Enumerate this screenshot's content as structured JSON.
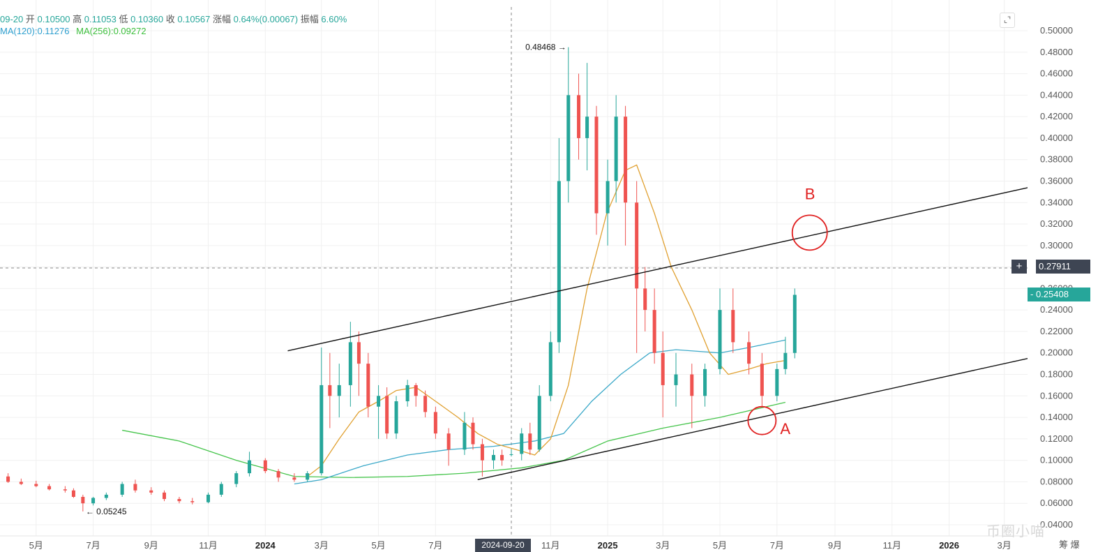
{
  "ohlc": {
    "date": "09-20",
    "open_label": "开",
    "open": "0.10500",
    "high_label": "高",
    "high": "0.11053",
    "low_label": "低",
    "low": "0.10360",
    "close_label": "收",
    "close": "0.10567",
    "change_label": "涨幅",
    "change": "0.64%(0.00067)",
    "amp_label": "振幅",
    "amp": "6.60%"
  },
  "ma": {
    "ma120": "MA(120):0.11276",
    "ma256": "MA(256):0.09272"
  },
  "crosshair": {
    "price": "0.27911",
    "date": "2024-09-20"
  },
  "last_price": "0.25408",
  "watermark": "币圈小喵",
  "corner_text": "筹 爆",
  "colors": {
    "up": "#26a69a",
    "down": "#ef5350",
    "ma_short": "#e0a030",
    "ma120": "#3aa8c8",
    "ma256": "#44c44a",
    "trendline": "#111111",
    "circle": "#e02020"
  },
  "chart_data": {
    "type": "candlestick",
    "title": "",
    "xlabel": "",
    "ylabel": "",
    "ylim": [
      0.04,
      0.5
    ],
    "y_ticks": [
      "0.50000",
      "0.48000",
      "0.46000",
      "0.44000",
      "0.42000",
      "0.40000",
      "0.38000",
      "0.36000",
      "0.34000",
      "0.32000",
      "0.30000",
      "0.28000",
      "0.26000",
      "0.24000",
      "0.22000",
      "0.20000",
      "0.18000",
      "0.16000",
      "0.14000",
      "0.12000",
      "0.10000",
      "0.08000",
      "0.06000",
      "0.04000"
    ],
    "x_ticks": [
      "5月",
      "7月",
      "9月",
      "11月",
      "2024",
      "3月",
      "5月",
      "7月",
      "11月",
      "2025",
      "3月",
      "5月",
      "7月",
      "9月",
      "11月",
      "2026",
      "3月"
    ],
    "annotations": [
      {
        "text": "0.48468 →",
        "value": 0.48468
      },
      {
        "text": "← 0.05245",
        "value": 0.05245
      },
      {
        "text": "A",
        "value": 0.144
      },
      {
        "text": "B",
        "value": 0.31
      }
    ],
    "ma_short": [
      [
        "2024-02-15",
        0.085
      ],
      [
        "2024-03-01",
        0.095
      ],
      [
        "2024-03-20",
        0.12
      ],
      [
        "2024-04-10",
        0.145
      ],
      [
        "2024-05-01",
        0.155
      ],
      [
        "2024-05-20",
        0.165
      ],
      [
        "2024-06-10",
        0.168
      ],
      [
        "2024-07-01",
        0.155
      ],
      [
        "2024-07-25",
        0.14
      ],
      [
        "2024-08-15",
        0.125
      ],
      [
        "2024-09-05",
        0.115
      ],
      [
        "2024-09-25",
        0.11
      ],
      [
        "2024-10-15",
        0.105
      ],
      [
        "2024-11-01",
        0.12
      ],
      [
        "2024-11-20",
        0.17
      ],
      [
        "2024-12-10",
        0.26
      ],
      [
        "2024-12-31",
        0.33
      ],
      [
        "2025-01-20",
        0.37
      ],
      [
        "2025-02-01",
        0.375
      ],
      [
        "2025-02-20",
        0.33
      ],
      [
        "2025-03-10",
        0.28
      ],
      [
        "2025-04-01",
        0.24
      ],
      [
        "2025-04-20",
        0.2
      ],
      [
        "2025-05-10",
        0.18
      ],
      [
        "2025-06-01",
        0.185
      ],
      [
        "2025-06-20",
        0.19
      ],
      [
        "2025-07-10",
        0.193
      ]
    ],
    "ma120": [
      [
        "2024-02-01",
        0.078
      ],
      [
        "2024-03-01",
        0.082
      ],
      [
        "2024-04-15",
        0.095
      ],
      [
        "2024-06-01",
        0.105
      ],
      [
        "2024-07-15",
        0.11
      ],
      [
        "2024-09-01",
        0.113
      ],
      [
        "2024-10-15",
        0.118
      ],
      [
        "2024-11-15",
        0.125
      ],
      [
        "2024-12-15",
        0.155
      ],
      [
        "2025-01-15",
        0.18
      ],
      [
        "2025-02-15",
        0.2
      ],
      [
        "2025-03-15",
        0.203
      ],
      [
        "2025-05-01",
        0.2
      ],
      [
        "2025-06-01",
        0.205
      ],
      [
        "2025-07-10",
        0.212
      ]
    ],
    "ma256": [
      [
        "2023-08-01",
        0.128
      ],
      [
        "2023-10-01",
        0.118
      ],
      [
        "2023-12-01",
        0.1
      ],
      [
        "2024-02-01",
        0.085
      ],
      [
        "2024-04-01",
        0.084
      ],
      [
        "2024-06-01",
        0.085
      ],
      [
        "2024-08-01",
        0.088
      ],
      [
        "2024-10-01",
        0.093
      ],
      [
        "2024-11-15",
        0.1
      ],
      [
        "2025-01-01",
        0.118
      ],
      [
        "2025-03-01",
        0.13
      ],
      [
        "2025-05-01",
        0.14
      ],
      [
        "2025-07-10",
        0.154
      ]
    ],
    "trendlines": [
      {
        "name": "upper",
        "from": [
          "2024-01-25",
          0.202
        ],
        "to": [
          "2026-04-01",
          0.355
        ]
      },
      {
        "name": "lower",
        "from": [
          "2024-08-15",
          0.082
        ],
        "to": [
          "2026-04-01",
          0.196
        ]
      }
    ],
    "candles": [
      [
        "2023-04-01",
        0.085,
        0.088,
        0.079,
        0.08
      ],
      [
        "2023-04-15",
        0.08,
        0.083,
        0.077,
        0.078
      ],
      [
        "2023-05-01",
        0.078,
        0.081,
        0.075,
        0.076
      ],
      [
        "2023-05-15",
        0.076,
        0.078,
        0.072,
        0.073
      ],
      [
        "2023-06-01",
        0.073,
        0.076,
        0.07,
        0.072
      ],
      [
        "2023-06-10",
        0.072,
        0.074,
        0.065,
        0.066
      ],
      [
        "2023-06-20",
        0.066,
        0.068,
        0.05245,
        0.06
      ],
      [
        "2023-07-01",
        0.06,
        0.066,
        0.058,
        0.065
      ],
      [
        "2023-07-15",
        0.065,
        0.07,
        0.063,
        0.068
      ],
      [
        "2023-08-01",
        0.068,
        0.08,
        0.066,
        0.078
      ],
      [
        "2023-08-15",
        0.078,
        0.082,
        0.07,
        0.072
      ],
      [
        "2023-09-01",
        0.072,
        0.075,
        0.068,
        0.07
      ],
      [
        "2023-09-15",
        0.07,
        0.072,
        0.062,
        0.064
      ],
      [
        "2023-10-01",
        0.064,
        0.066,
        0.06,
        0.062
      ],
      [
        "2023-10-15",
        0.062,
        0.065,
        0.059,
        0.061
      ],
      [
        "2023-11-01",
        0.061,
        0.07,
        0.06,
        0.068
      ],
      [
        "2023-11-15",
        0.068,
        0.08,
        0.066,
        0.078
      ],
      [
        "2023-12-01",
        0.078,
        0.09,
        0.075,
        0.088
      ],
      [
        "2023-12-15",
        0.088,
        0.108,
        0.085,
        0.1
      ],
      [
        "2024-01-01",
        0.1,
        0.102,
        0.088,
        0.09
      ],
      [
        "2024-01-15",
        0.09,
        0.092,
        0.08,
        0.084
      ],
      [
        "2024-02-01",
        0.084,
        0.088,
        0.08,
        0.082
      ],
      [
        "2024-02-15",
        0.082,
        0.09,
        0.08,
        0.088
      ],
      [
        "2024-03-01",
        0.088,
        0.205,
        0.086,
        0.17
      ],
      [
        "2024-03-10",
        0.17,
        0.2,
        0.13,
        0.16
      ],
      [
        "2024-03-20",
        0.16,
        0.19,
        0.14,
        0.17
      ],
      [
        "2024-04-01",
        0.17,
        0.229,
        0.15,
        0.21
      ],
      [
        "2024-04-10",
        0.21,
        0.22,
        0.16,
        0.19
      ],
      [
        "2024-04-20",
        0.19,
        0.2,
        0.14,
        0.15
      ],
      [
        "2024-05-01",
        0.15,
        0.17,
        0.12,
        0.16
      ],
      [
        "2024-05-10",
        0.16,
        0.168,
        0.12,
        0.125
      ],
      [
        "2024-05-20",
        0.125,
        0.16,
        0.12,
        0.155
      ],
      [
        "2024-06-01",
        0.155,
        0.175,
        0.15,
        0.17
      ],
      [
        "2024-06-10",
        0.17,
        0.172,
        0.15,
        0.16
      ],
      [
        "2024-06-20",
        0.16,
        0.165,
        0.14,
        0.145
      ],
      [
        "2024-07-01",
        0.145,
        0.15,
        0.12,
        0.125
      ],
      [
        "2024-07-15",
        0.125,
        0.13,
        0.095,
        0.11
      ],
      [
        "2024-08-01",
        0.11,
        0.145,
        0.105,
        0.135
      ],
      [
        "2024-08-10",
        0.135,
        0.14,
        0.11,
        0.115
      ],
      [
        "2024-08-20",
        0.115,
        0.12,
        0.085,
        0.1
      ],
      [
        "2024-09-01",
        0.1,
        0.11,
        0.092,
        0.105
      ],
      [
        "2024-09-10",
        0.105,
        0.11,
        0.095,
        0.1
      ],
      [
        "2024-09-20",
        0.105,
        0.11053,
        0.1036,
        0.10567
      ],
      [
        "2024-10-01",
        0.106,
        0.13,
        0.1,
        0.125
      ],
      [
        "2024-10-10",
        0.125,
        0.135,
        0.105,
        0.11
      ],
      [
        "2024-10-20",
        0.11,
        0.17,
        0.108,
        0.16
      ],
      [
        "2024-11-01",
        0.16,
        0.22,
        0.155,
        0.21
      ],
      [
        "2024-11-10",
        0.21,
        0.4,
        0.2,
        0.36
      ],
      [
        "2024-11-20",
        0.36,
        0.48468,
        0.34,
        0.44
      ],
      [
        "2024-12-01",
        0.44,
        0.46,
        0.38,
        0.4
      ],
      [
        "2024-12-10",
        0.4,
        0.47,
        0.37,
        0.42
      ],
      [
        "2024-12-20",
        0.42,
        0.43,
        0.31,
        0.33
      ],
      [
        "2025-01-01",
        0.33,
        0.38,
        0.3,
        0.36
      ],
      [
        "2025-01-10",
        0.36,
        0.44,
        0.34,
        0.42
      ],
      [
        "2025-01-20",
        0.42,
        0.43,
        0.3,
        0.34
      ],
      [
        "2025-02-01",
        0.34,
        0.36,
        0.2,
        0.26
      ],
      [
        "2025-02-10",
        0.26,
        0.28,
        0.22,
        0.24
      ],
      [
        "2025-02-20",
        0.24,
        0.26,
        0.19,
        0.2
      ],
      [
        "2025-03-01",
        0.2,
        0.22,
        0.14,
        0.17
      ],
      [
        "2025-03-15",
        0.17,
        0.2,
        0.15,
        0.18
      ],
      [
        "2025-04-01",
        0.18,
        0.19,
        0.13,
        0.16
      ],
      [
        "2025-04-15",
        0.16,
        0.19,
        0.15,
        0.185
      ],
      [
        "2025-05-01",
        0.185,
        0.26,
        0.18,
        0.24
      ],
      [
        "2025-05-15",
        0.24,
        0.26,
        0.2,
        0.21
      ],
      [
        "2025-06-01",
        0.21,
        0.22,
        0.18,
        0.19
      ],
      [
        "2025-06-15",
        0.19,
        0.2,
        0.15,
        0.16
      ],
      [
        "2025-07-01",
        0.16,
        0.19,
        0.155,
        0.185
      ],
      [
        "2025-07-10",
        0.185,
        0.215,
        0.18,
        0.2
      ],
      [
        "2025-07-20",
        0.2,
        0.26,
        0.195,
        0.25408
      ]
    ]
  }
}
